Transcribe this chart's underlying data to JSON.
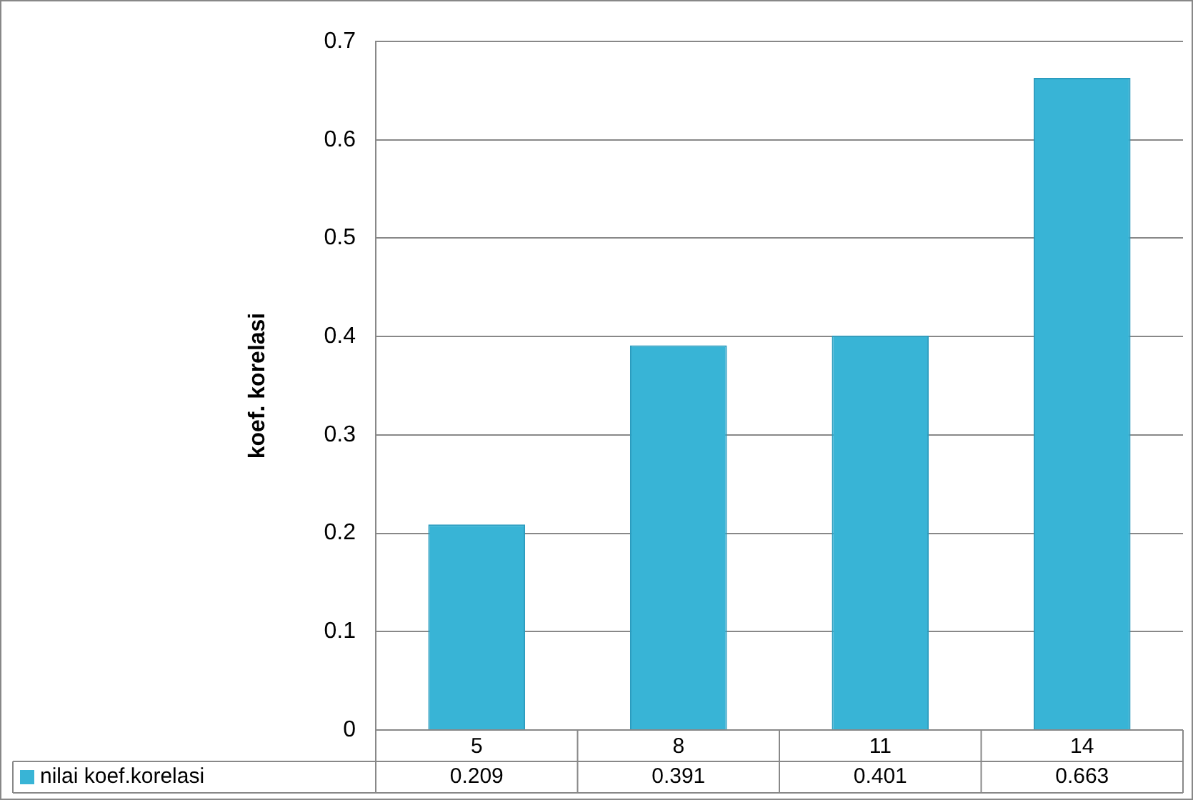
{
  "chart_data": {
    "type": "bar",
    "ylabel": "koef. korelasi",
    "categories": [
      "5",
      "8",
      "11",
      "14"
    ],
    "series": [
      {
        "name": "nilai koef.korelasi",
        "color": "#38b4d6",
        "values": [
          0.209,
          0.391,
          0.401,
          0.663
        ]
      }
    ],
    "ylim": [
      0,
      0.7
    ],
    "yticks": [
      0,
      0.1,
      0.2,
      0.3,
      0.4,
      0.5,
      0.6,
      0.7
    ],
    "grid": "y",
    "legend": "bottom",
    "data_labels": true
  }
}
